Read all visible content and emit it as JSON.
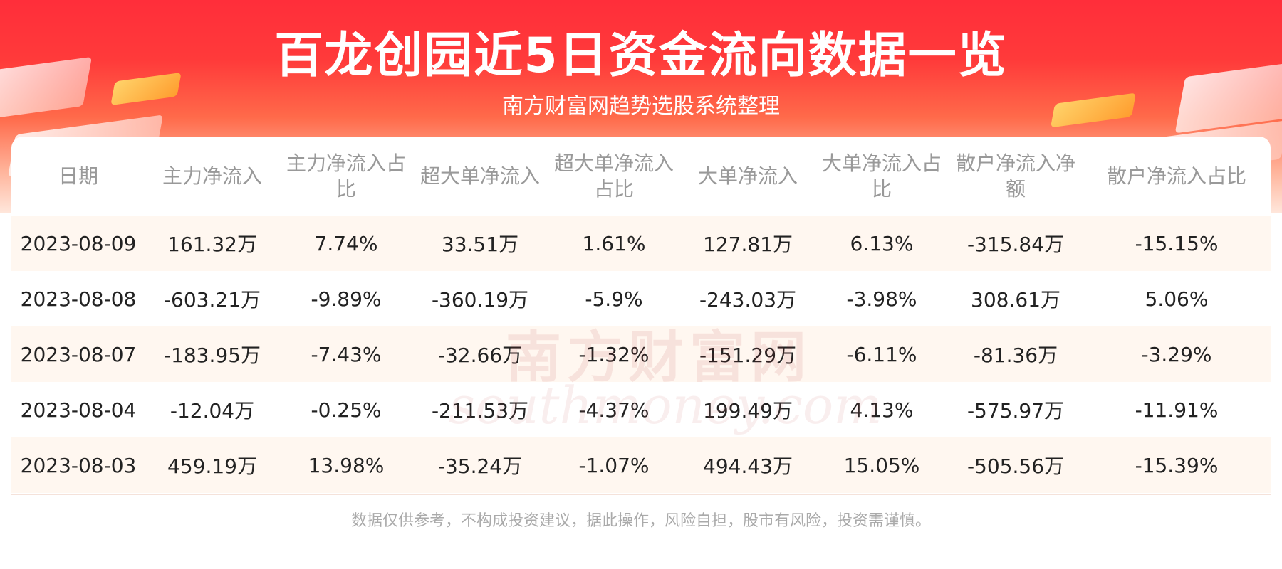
{
  "header": {
    "title": "百龙创园近5日资金流向数据一览",
    "subtitle": "南方财富网趋势选股系统整理"
  },
  "table": {
    "columns": [
      "日期",
      "主力净流入",
      "主力净流入占比",
      "超大单净流入",
      "超大单净流入占比",
      "大单净流入",
      "大单净流入占比",
      "散户净流入净额",
      "散户净流入占比"
    ],
    "rows": [
      [
        "2023-08-09",
        "161.32万",
        "7.74%",
        "33.51万",
        "1.61%",
        "127.81万",
        "6.13%",
        "-315.84万",
        "-15.15%"
      ],
      [
        "2023-08-08",
        "-603.21万",
        "-9.89%",
        "-360.19万",
        "-5.9%",
        "-243.03万",
        "-3.98%",
        "308.61万",
        "5.06%"
      ],
      [
        "2023-08-07",
        "-183.95万",
        "-7.43%",
        "-32.66万",
        "-1.32%",
        "-151.29万",
        "-6.11%",
        "-81.36万",
        "-3.29%"
      ],
      [
        "2023-08-04",
        "-12.04万",
        "-0.25%",
        "-211.53万",
        "-4.37%",
        "199.49万",
        "4.13%",
        "-575.97万",
        "-11.91%"
      ],
      [
        "2023-08-03",
        "459.19万",
        "13.98%",
        "-35.24万",
        "-1.07%",
        "494.43万",
        "15.05%",
        "-505.56万",
        "-15.39%"
      ]
    ]
  },
  "watermark": {
    "brand": "南方财富网",
    "domain": "southmoney.com"
  },
  "footer": {
    "disclaimer": "数据仅供参考，不构成投资建议，据此操作，风险自担，股市有风险，投资需谨慎。"
  }
}
